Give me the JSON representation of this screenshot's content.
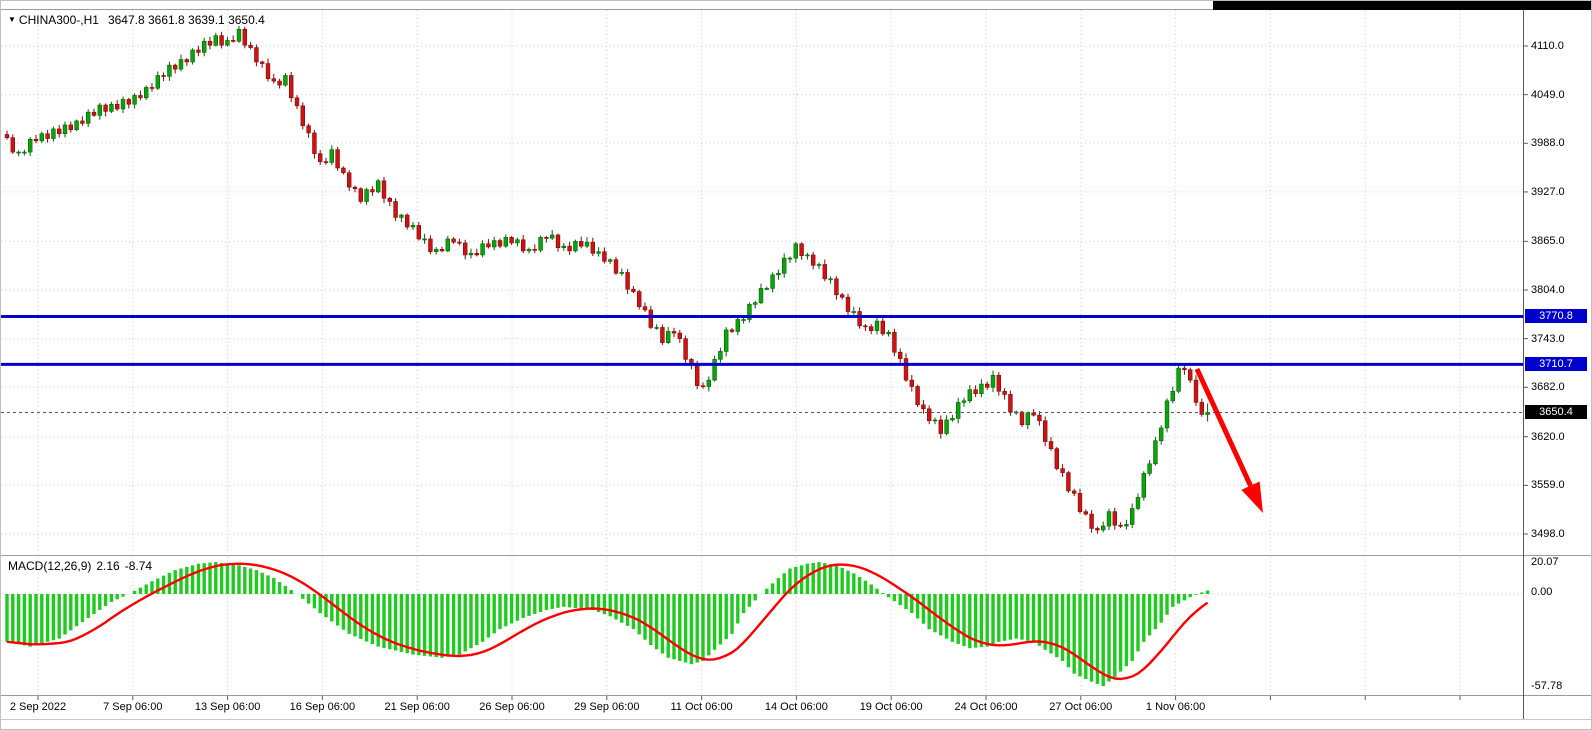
{
  "header": {
    "marker_glyph": "▼",
    "symbol_period": "CHINA300-,H1",
    "ohlc": "3647.8 3661.8 3639.1 3650.4"
  },
  "indicator_info": {
    "label": "MACD(12,26,9)",
    "main_value": "2.16",
    "signal_value": "-8.74"
  },
  "colors": {
    "bull": "#0ba50b",
    "bull_border": "#056005",
    "bear": "#cf1212",
    "bear_border": "#7e0a0a",
    "hist": "#1fcb1f",
    "signal": "#ff0000",
    "hline": "#0000cc",
    "grid": "#cfcfcf",
    "axis_text": "#000000",
    "badge_current_bg": "#000000",
    "arrow": "#ff0000"
  },
  "price_axis": {
    "ticks": [
      "4110.0",
      "4049.0",
      "3988.0",
      "3927.0",
      "3865.0",
      "3804.0",
      "3743.0",
      "3682.0",
      "3620.0",
      "3559.0",
      "3498.0"
    ]
  },
  "indicator_axis": {
    "ticks": [
      "20.07",
      "0.00",
      "-57.78"
    ]
  },
  "time_axis": {
    "labels": [
      "2 Sep 2022",
      "7 Sep 06:00",
      "13 Sep 06:00",
      "16 Sep 06:00",
      "21 Sep 06:00",
      "26 Sep 06:00",
      "29 Sep 06:00",
      "11 Oct 06:00",
      "14 Oct 06:00",
      "19 Oct 06:00",
      "24 Oct 06:00",
      "27 Oct 06:00",
      "1 Nov 06:00"
    ]
  },
  "hlines": [
    {
      "label": "3770.8",
      "price": 3770.8
    },
    {
      "label": "3710.7",
      "price": 3710.7
    }
  ],
  "current_price": {
    "label": "3650.4",
    "price": 3650.4
  },
  "annotation": {
    "type": "arrow-down-right",
    "color": "#ff0000"
  },
  "chart_data": {
    "type": "candlestick",
    "title": "CHINA300-,H1",
    "symbol": "CHINA300-",
    "timeframe": "H1",
    "current_bar": {
      "open": 3647.8,
      "high": 3661.8,
      "low": 3639.1,
      "close": 3650.4
    },
    "ylim": [
      3483,
      4156
    ],
    "y_ticks": [
      4110.0,
      4049.0,
      3988.0,
      3927.0,
      3865.0,
      3804.0,
      3743.0,
      3682.0,
      3620.0,
      3559.0,
      3498.0
    ],
    "x_tick_labels": [
      "2 Sep 2022",
      "7 Sep 06:00",
      "13 Sep 06:00",
      "16 Sep 06:00",
      "21 Sep 06:00",
      "26 Sep 06:00",
      "29 Sep 06:00",
      "11 Oct 06:00",
      "14 Oct 06:00",
      "19 Oct 06:00",
      "24 Oct 06:00",
      "27 Oct 06:00",
      "1 Nov 06:00"
    ],
    "closes": [
      3995,
      3977,
      3977,
      3977,
      3993,
      3991,
      4000,
      3994,
      4006,
      4000,
      4011,
      4005,
      4016,
      4013,
      4027,
      4023,
      4036,
      4028,
      4037,
      4031,
      4043,
      4037,
      4048,
      4045,
      4058,
      4057,
      4073,
      4072,
      4086,
      4081,
      4093,
      4090,
      4105,
      4102,
      4116,
      4111,
      4123,
      4111,
      4117,
      4116,
      4131,
      4111,
      4108,
      4090,
      4088,
      4069,
      4066,
      4061,
      4073,
      4045,
      4035,
      4010,
      4001,
      3975,
      3965,
      3964,
      3980,
      3957,
      3951,
      3933,
      3931,
      3915,
      3930,
      3927,
      3941,
      3919,
      3915,
      3895,
      3898,
      3883,
      3885,
      3868,
      3868,
      3852,
      3855,
      3853,
      3868,
      3864,
      3863,
      3848,
      3850,
      3848,
      3862,
      3858,
      3866,
      3859,
      3870,
      3863,
      3867,
      3853,
      3855,
      3854,
      3870,
      3869,
      3873,
      3857,
      3859,
      3853,
      3865,
      3859,
      3864,
      3850,
      3852,
      3840,
      3842,
      3825,
      3826,
      3805,
      3802,
      3783,
      3779,
      3757,
      3757,
      3738,
      3752,
      3750,
      3743,
      3717,
      3710,
      3684,
      3683,
      3691,
      3717,
      3727,
      3754,
      3752,
      3767,
      3767,
      3786,
      3788,
      3806,
      3806,
      3823,
      3825,
      3844,
      3844,
      3862,
      3847,
      3848,
      3835,
      3836,
      3818,
      3818,
      3798,
      3795,
      3777,
      3777,
      3759,
      3758,
      3753,
      3765,
      3749,
      3751,
      3726,
      3718,
      3691,
      3683,
      3660,
      3655,
      3640,
      3641,
      3624,
      3641,
      3643,
      3663,
      3665,
      3679,
      3674,
      3686,
      3682,
      3697,
      3677,
      3673,
      3651,
      3651,
      3635,
      3650,
      3647,
      3640,
      3614,
      3605,
      3580,
      3575,
      3552,
      3549,
      3526,
      3523,
      3505,
      3503,
      3508,
      3526,
      3509,
      3508,
      3510,
      3530,
      3544,
      3574,
      3586,
      3615,
      3631,
      3665,
      3677,
      3706,
      3704,
      3691,
      3663,
      3648,
      3650.4
    ],
    "horizontal_lines": [
      3770.8,
      3710.7
    ],
    "last_price": 3650.4,
    "indicator": {
      "name": "MACD",
      "parameters": [
        12,
        26,
        9
      ],
      "main": 2.16,
      "signal": -8.74,
      "scale_max": 20.07,
      "scale_min": -57.78
    },
    "macd_histogram_waypoints": [
      [
        0,
        -30
      ],
      [
        4,
        -33
      ],
      [
        9,
        -28
      ],
      [
        14,
        -15
      ],
      [
        18,
        -5
      ],
      [
        21,
        0
      ],
      [
        25,
        8
      ],
      [
        29,
        15
      ],
      [
        33,
        19
      ],
      [
        36,
        20
      ],
      [
        40,
        18
      ],
      [
        43,
        15
      ],
      [
        46,
        10
      ],
      [
        50,
        0
      ],
      [
        54,
        -12
      ],
      [
        59,
        -25
      ],
      [
        64,
        -33
      ],
      [
        70,
        -38
      ],
      [
        75,
        -40
      ],
      [
        78,
        -38
      ],
      [
        82,
        -30
      ],
      [
        85,
        -22
      ],
      [
        89,
        -15
      ],
      [
        93,
        -10
      ],
      [
        96,
        -8
      ],
      [
        101,
        -10
      ],
      [
        104,
        -14
      ],
      [
        108,
        -22
      ],
      [
        111,
        -32
      ],
      [
        114,
        -40
      ],
      [
        118,
        -44
      ],
      [
        120,
        -42
      ],
      [
        122,
        -35
      ],
      [
        125,
        -25
      ],
      [
        127,
        -12
      ],
      [
        130,
        0
      ],
      [
        133,
        10
      ],
      [
        135,
        16
      ],
      [
        138,
        19
      ],
      [
        140,
        20
      ],
      [
        143,
        18
      ],
      [
        146,
        13
      ],
      [
        149,
        6
      ],
      [
        152,
        -2
      ],
      [
        156,
        -12
      ],
      [
        159,
        -22
      ],
      [
        163,
        -30
      ],
      [
        166,
        -34
      ],
      [
        169,
        -33
      ],
      [
        171,
        -30
      ],
      [
        174,
        -28
      ],
      [
        177,
        -30
      ],
      [
        179,
        -35
      ],
      [
        182,
        -42
      ],
      [
        184,
        -50
      ],
      [
        187,
        -55
      ],
      [
        189,
        -57.78
      ],
      [
        191,
        -52
      ],
      [
        194,
        -42
      ],
      [
        196,
        -30
      ],
      [
        199,
        -18
      ],
      [
        201,
        -8
      ],
      [
        204,
        -2
      ],
      [
        206,
        1
      ],
      [
        207,
        2.16
      ]
    ]
  }
}
